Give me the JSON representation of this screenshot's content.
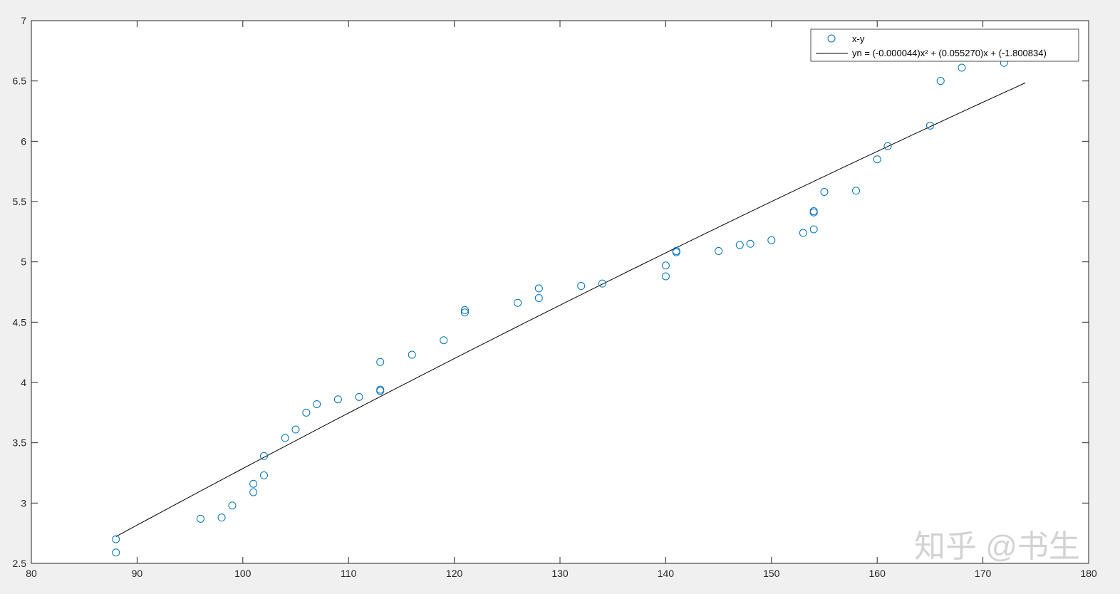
{
  "colors": {
    "figure_bg": "#f0f0f0",
    "axes_bg": "#ffffff",
    "axis": "#262626",
    "marker": "#0072bd",
    "fit_line": "#000000",
    "watermark": "#c8c8c8"
  },
  "watermark": {
    "text": "知乎 @书生"
  },
  "chart_data": {
    "type": "scatter",
    "title": "",
    "xlabel": "",
    "ylabel": "",
    "xlim": [
      80,
      180
    ],
    "ylim": [
      2.5,
      7
    ],
    "grid": false,
    "legend_position": "top-right",
    "x_ticks": [
      80,
      90,
      100,
      110,
      120,
      130,
      140,
      150,
      160,
      170,
      180
    ],
    "x_tick_labels": [
      "80",
      "90",
      "100",
      "110",
      "120",
      "130",
      "140",
      "150",
      "160",
      "170",
      "180"
    ],
    "y_ticks": [
      2.5,
      3,
      3.5,
      4,
      4.5,
      5,
      5.5,
      6,
      6.5,
      7
    ],
    "y_tick_labels": [
      "2.5",
      "3",
      "3.5",
      "4",
      "4.5",
      "5",
      "5.5",
      "6",
      "6.5",
      "7"
    ],
    "series": [
      {
        "name": "x-y",
        "type": "scatter",
        "marker": "circle",
        "color": "#0072bd",
        "points": [
          [
            88,
            2.7
          ],
          [
            88,
            2.59
          ],
          [
            96,
            2.87
          ],
          [
            98,
            2.88
          ],
          [
            99,
            2.98
          ],
          [
            101,
            3.16
          ],
          [
            101,
            3.09
          ],
          [
            102,
            3.39
          ],
          [
            102,
            3.23
          ],
          [
            104,
            3.54
          ],
          [
            105,
            3.61
          ],
          [
            106,
            3.75
          ],
          [
            107,
            3.82
          ],
          [
            109,
            3.86
          ],
          [
            111,
            3.88
          ],
          [
            113,
            4.17
          ],
          [
            113,
            3.94
          ],
          [
            113,
            3.93
          ],
          [
            116,
            4.23
          ],
          [
            119,
            4.35
          ],
          [
            121,
            4.6
          ],
          [
            121,
            4.58
          ],
          [
            126,
            4.66
          ],
          [
            128,
            4.78
          ],
          [
            128,
            4.7
          ],
          [
            132,
            4.8
          ],
          [
            134,
            4.82
          ],
          [
            140,
            4.97
          ],
          [
            140,
            4.88
          ],
          [
            141,
            5.09
          ],
          [
            141,
            5.08
          ],
          [
            145,
            5.09
          ],
          [
            147,
            5.14
          ],
          [
            148,
            5.15
          ],
          [
            150,
            5.18
          ],
          [
            153,
            5.24
          ],
          [
            154,
            5.42
          ],
          [
            154,
            5.41
          ],
          [
            154,
            5.27
          ],
          [
            155,
            5.58
          ],
          [
            158,
            5.59
          ],
          [
            160,
            5.85
          ],
          [
            161,
            5.96
          ],
          [
            165,
            6.13
          ],
          [
            166,
            6.5
          ],
          [
            168,
            6.61
          ],
          [
            172,
            6.65
          ]
        ]
      },
      {
        "name": "yn = (-0.000044)x² + (0.055270)x + (-1.800834)",
        "type": "line",
        "color": "#000000",
        "coefficients": {
          "a": -4.4e-05,
          "b": 0.05527,
          "c": -1.800834
        },
        "x_range": [
          88,
          174
        ]
      }
    ]
  }
}
